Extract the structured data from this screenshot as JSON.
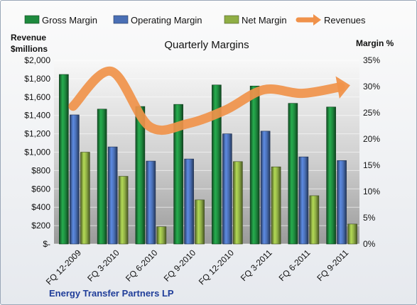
{
  "chart_data": {
    "type": "bar",
    "title": "Quarterly Margins",
    "subtitle": "",
    "left_axis_title": [
      "Revenue",
      "$millions"
    ],
    "right_axis_title": "Margin %",
    "footer": "Energy Transfer Partners LP",
    "categories": [
      "FQ 12-2009",
      "FQ 3-2010",
      "FQ 6-2010",
      "FQ 9-2010",
      "FQ 12-2010",
      "FQ 3-2011",
      "FQ 6-2011",
      "FQ 9-2011"
    ],
    "left_axis": {
      "ylim": [
        0,
        2000
      ],
      "ticks": [
        0,
        200,
        400,
        600,
        800,
        1000,
        1200,
        1400,
        1600,
        1800,
        2000
      ],
      "tick_labels": [
        "$-",
        "$200",
        "$400",
        "$600",
        "$800",
        "$1,000",
        "$1,200",
        "$1,400",
        "$1,600",
        "$1,800",
        "$2,000"
      ]
    },
    "right_axis": {
      "ylim": [
        0,
        35
      ],
      "ticks": [
        0,
        5,
        10,
        15,
        20,
        25,
        30,
        35
      ],
      "tick_labels": [
        "0%",
        "5%",
        "10%",
        "15%",
        "20%",
        "25%",
        "30%",
        "35%"
      ]
    },
    "series": [
      {
        "name": "Gross Margin",
        "type": "bar",
        "axis": "right",
        "color": "#1e8a3e",
        "values": [
          32.3,
          25.7,
          26.2,
          26.6,
          30.3,
          30.1,
          26.8,
          26.1
        ]
      },
      {
        "name": "Operating Margin",
        "type": "bar",
        "axis": "right",
        "color": "#4a6fb5",
        "values": [
          24.6,
          18.5,
          15.8,
          16.2,
          21.0,
          21.5,
          16.6,
          15.9
        ]
      },
      {
        "name": "Net Margin",
        "type": "bar",
        "axis": "right",
        "color": "#8fae45",
        "values": [
          17.5,
          12.9,
          3.3,
          8.4,
          15.7,
          14.7,
          9.2,
          3.8
        ]
      },
      {
        "name": "Revenues",
        "type": "line",
        "axis": "left",
        "color": "#f0924a",
        "values": [
          1500,
          1880,
          1280,
          1310,
          1460,
          1680,
          1640,
          1710
        ]
      }
    ],
    "grid": true,
    "legend_position": "top"
  }
}
